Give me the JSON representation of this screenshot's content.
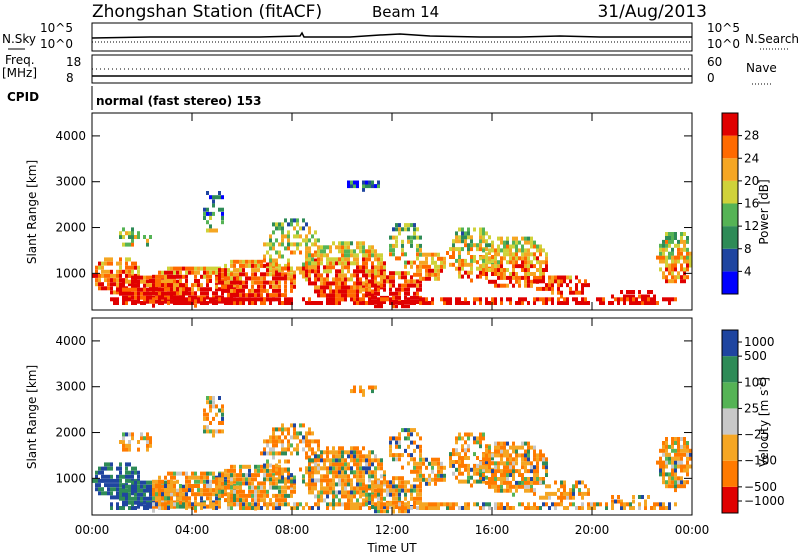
{
  "header": {
    "station": "Zhongshan Station (fitACF)",
    "beam": "Beam 14",
    "date": "31/Aug/2013"
  },
  "top_panel": {
    "left_label": "N.Sky",
    "left_ticks": [
      "10^5",
      "10^0"
    ],
    "right_label": "N.Search",
    "right_ticks": [
      "10^5",
      "10^0"
    ]
  },
  "freq_panel": {
    "left_label_1": "Freq.",
    "left_label_2": "[MHz]",
    "left_ticks": [
      "18",
      "8"
    ],
    "right_label": "Nave",
    "right_ticks": [
      "60",
      "0"
    ]
  },
  "cpid": {
    "label": "CPID",
    "text": "normal (fast stereo) 153"
  },
  "colors": {
    "power_scale": [
      "#0000ff",
      "#1f45a0",
      "#2e8b57",
      "#55b355",
      "#cfd23a",
      "#f5a623",
      "#ff6a00",
      "#e00000"
    ],
    "velocity_scale": [
      "#1f45a0",
      "#2e8b57",
      "#55b355",
      "#c8c8c8",
      "#f5a623",
      "#ff7a00",
      "#e00000"
    ]
  },
  "chart_data": [
    {
      "type": "heatmap",
      "title": "Power",
      "ylabel": "Slant Range [km]",
      "ylim": [
        200,
        4500
      ],
      "y_ticks": [
        "1000",
        "2000",
        "3000",
        "4000"
      ],
      "xlim": [
        "00:00",
        "24:00"
      ],
      "colorbar_label": "Power [dB]",
      "colorbar_ticks": [
        "4",
        "8",
        "12",
        "16",
        "20",
        "24",
        "28"
      ],
      "colorbar_range": [
        0,
        32
      ]
    },
    {
      "type": "heatmap",
      "title": "Velocity",
      "ylabel": "Slant Range [km]",
      "xlabel": "Time UT",
      "ylim": [
        200,
        4500
      ],
      "y_ticks": [
        "1000",
        "2000",
        "3000",
        "4000"
      ],
      "x_ticks": [
        "00:00",
        "04:00",
        "08:00",
        "12:00",
        "16:00",
        "20:00",
        "00:00"
      ],
      "colorbar_label": "Velocity [m s",
      "colorbar_label_sup": "-1",
      "colorbar_label_end": "]",
      "colorbar_ticks": [
        "1000",
        "500",
        "100",
        "25",
        "−25",
        "−100",
        "−500",
        "−1000"
      ]
    }
  ]
}
